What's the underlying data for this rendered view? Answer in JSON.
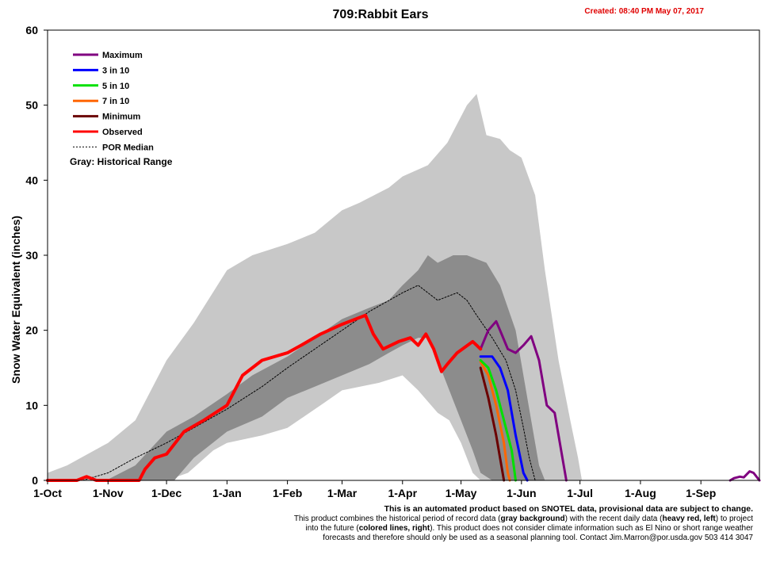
{
  "title": "709:Rabbit Ears",
  "created": "Created: 08:40 PM May 07, 2017",
  "footer": {
    "line1": "This is an automated product based on SNOTEL data, provisional data are subject to change.",
    "line2a": "This product combines the historical period of record data (",
    "line2b": "gray background",
    "line2c": ") with the recent daily data (",
    "line2d": "heavy red, left",
    "line2e": ") to project",
    "line3a": "into the future (",
    "line3b": "colored lines, right",
    "line3c": "). This product does not consider climate information such as El Nino or short range weather",
    "line4": "forecasts and therefore should only be used as a seasonal planning tool. Contact Jim.Marron@por.usda.gov 503 414 3047"
  },
  "chart_data": {
    "type": "line",
    "ylabel": "Snow Water Equivalent (inches)",
    "xlabel": "",
    "ylim": [
      0,
      60
    ],
    "yticks": [
      "0",
      "10",
      "20",
      "30",
      "40",
      "50",
      "60"
    ],
    "xlim": [
      0,
      365
    ],
    "xticks": [
      {
        "label": "1-Oct",
        "day": 0
      },
      {
        "label": "1-Nov",
        "day": 31
      },
      {
        "label": "1-Dec",
        "day": 61
      },
      {
        "label": "1-Jan",
        "day": 92
      },
      {
        "label": "1-Feb",
        "day": 123
      },
      {
        "label": "1-Mar",
        "day": 151
      },
      {
        "label": "1-Apr",
        "day": 182
      },
      {
        "label": "1-May",
        "day": 212
      },
      {
        "label": "1-Jun",
        "day": 243
      },
      {
        "label": "1-Jul",
        "day": 273
      },
      {
        "label": "1-Aug",
        "day": 304
      },
      {
        "label": "1-Sep",
        "day": 335
      }
    ],
    "legend_position": "top-left",
    "legend": [
      {
        "name": "Maximum",
        "color": "#800080",
        "style": "solid"
      },
      {
        "name": "3 in 10",
        "color": "#0000ff",
        "style": "solid"
      },
      {
        "name": "5 in 10",
        "color": "#00e000",
        "style": "solid"
      },
      {
        "name": "7 in 10",
        "color": "#ff6600",
        "style": "solid"
      },
      {
        "name": "Minimum",
        "color": "#6b0000",
        "style": "solid"
      },
      {
        "name": "Observed",
        "color": "#ff0000",
        "style": "solid"
      },
      {
        "name": "POR Median",
        "color": "#000000",
        "style": "dashed"
      }
    ],
    "legend_note": "Gray: Historical Range",
    "colors": {
      "range_outer": "#c8c8c8",
      "range_inner": "#8c8c8c"
    },
    "historical_range_max": [
      [
        0,
        1
      ],
      [
        10,
        2
      ],
      [
        31,
        5
      ],
      [
        45,
        8
      ],
      [
        61,
        16
      ],
      [
        75,
        21
      ],
      [
        92,
        28
      ],
      [
        105,
        30
      ],
      [
        123,
        31.5
      ],
      [
        137,
        33
      ],
      [
        151,
        36
      ],
      [
        160,
        37
      ],
      [
        175,
        39
      ],
      [
        182,
        40.5
      ],
      [
        195,
        42
      ],
      [
        205,
        45
      ],
      [
        215,
        50
      ],
      [
        220,
        51.5
      ],
      [
        225,
        46
      ],
      [
        232,
        45.5
      ],
      [
        237,
        44
      ],
      [
        243,
        43
      ],
      [
        250,
        38
      ],
      [
        255,
        28
      ],
      [
        262,
        16
      ],
      [
        268,
        8
      ],
      [
        272,
        3
      ],
      [
        274,
        0
      ]
    ],
    "historical_range_min": [
      [
        0,
        0
      ],
      [
        40,
        0
      ],
      [
        61,
        0
      ],
      [
        72,
        1
      ],
      [
        85,
        4
      ],
      [
        92,
        5
      ],
      [
        110,
        6
      ],
      [
        123,
        7
      ],
      [
        140,
        10
      ],
      [
        151,
        12
      ],
      [
        170,
        13
      ],
      [
        182,
        14
      ],
      [
        190,
        12
      ],
      [
        200,
        9
      ],
      [
        206,
        8
      ],
      [
        212,
        5
      ],
      [
        218,
        1
      ],
      [
        222,
        0
      ]
    ],
    "inner_band_upper": [
      [
        30,
        0
      ],
      [
        45,
        2
      ],
      [
        61,
        6.5
      ],
      [
        75,
        8.5
      ],
      [
        92,
        11.5
      ],
      [
        105,
        14
      ],
      [
        123,
        16.5
      ],
      [
        137,
        19
      ],
      [
        151,
        21.5
      ],
      [
        165,
        23
      ],
      [
        175,
        24
      ],
      [
        182,
        26
      ],
      [
        190,
        28
      ],
      [
        195,
        30
      ],
      [
        200,
        29
      ],
      [
        208,
        30
      ],
      [
        215,
        30
      ],
      [
        225,
        29
      ],
      [
        232,
        26
      ],
      [
        240,
        20
      ],
      [
        248,
        8
      ],
      [
        252,
        2
      ],
      [
        255,
        0
      ]
    ],
    "inner_band_lower": [
      [
        55,
        0
      ],
      [
        65,
        0
      ],
      [
        75,
        3
      ],
      [
        92,
        6.5
      ],
      [
        110,
        8.5
      ],
      [
        123,
        11
      ],
      [
        137,
        12.5
      ],
      [
        151,
        14
      ],
      [
        165,
        15.5
      ],
      [
        175,
        17
      ],
      [
        182,
        18
      ],
      [
        190,
        19
      ],
      [
        195,
        19
      ],
      [
        200,
        16
      ],
      [
        206,
        12
      ],
      [
        212,
        8
      ],
      [
        218,
        4
      ],
      [
        222,
        1
      ],
      [
        228,
        0
      ]
    ],
    "por_median": [
      [
        18,
        0
      ],
      [
        31,
        1
      ],
      [
        45,
        3
      ],
      [
        61,
        5
      ],
      [
        75,
        7
      ],
      [
        92,
        9.5
      ],
      [
        110,
        12.5
      ],
      [
        123,
        15
      ],
      [
        137,
        17.5
      ],
      [
        151,
        20
      ],
      [
        165,
        22.5
      ],
      [
        182,
        25
      ],
      [
        190,
        26
      ],
      [
        200,
        24
      ],
      [
        210,
        25
      ],
      [
        215,
        24
      ],
      [
        220,
        22
      ],
      [
        228,
        19
      ],
      [
        235,
        16
      ],
      [
        240,
        12
      ],
      [
        244,
        7
      ],
      [
        247,
        3
      ],
      [
        250,
        0
      ]
    ],
    "observed": [
      [
        0,
        0
      ],
      [
        15,
        0
      ],
      [
        20,
        0.5
      ],
      [
        25,
        0
      ],
      [
        47,
        0
      ],
      [
        50,
        1.5
      ],
      [
        55,
        3
      ],
      [
        61,
        3.5
      ],
      [
        70,
        6.5
      ],
      [
        80,
        8
      ],
      [
        92,
        10
      ],
      [
        100,
        14
      ],
      [
        110,
        16
      ],
      [
        123,
        17
      ],
      [
        130,
        18
      ],
      [
        140,
        19.5
      ],
      [
        151,
        20.8
      ],
      [
        158,
        21.5
      ],
      [
        163,
        22
      ],
      [
        167,
        19.5
      ],
      [
        172,
        17.5
      ],
      [
        180,
        18.5
      ],
      [
        186,
        19
      ],
      [
        190,
        18
      ],
      [
        194,
        19.5
      ],
      [
        198,
        17.5
      ],
      [
        202,
        14.5
      ],
      [
        205,
        15.5
      ],
      [
        210,
        17
      ],
      [
        218,
        18.5
      ],
      [
        220,
        18
      ],
      [
        222,
        17.5
      ]
    ],
    "maximum": [
      [
        222,
        17.5
      ],
      [
        226,
        20
      ],
      [
        230,
        21.2
      ],
      [
        232,
        20
      ],
      [
        236,
        17.5
      ],
      [
        240,
        17
      ],
      [
        244,
        18
      ],
      [
        248,
        19.2
      ],
      [
        252,
        16
      ],
      [
        256,
        10
      ],
      [
        260,
        9
      ],
      [
        264,
        3
      ],
      [
        266,
        0
      ]
    ],
    "three_in_10": [
      [
        222,
        16.5
      ],
      [
        228,
        16.5
      ],
      [
        232,
        15
      ],
      [
        236,
        12
      ],
      [
        240,
        6
      ],
      [
        244,
        1
      ],
      [
        246,
        0
      ]
    ],
    "five_in_10": [
      [
        222,
        16
      ],
      [
        226,
        15
      ],
      [
        230,
        12
      ],
      [
        234,
        8
      ],
      [
        238,
        4
      ],
      [
        240,
        0
      ]
    ],
    "seven_in_10": [
      [
        222,
        15.8
      ],
      [
        226,
        14
      ],
      [
        230,
        10
      ],
      [
        234,
        5
      ],
      [
        236,
        1
      ],
      [
        237,
        0
      ]
    ],
    "minimum": [
      [
        222,
        15
      ],
      [
        226,
        11
      ],
      [
        230,
        6
      ],
      [
        232,
        3
      ],
      [
        234,
        0
      ]
    ],
    "maximum_late": [
      [
        350,
        0
      ],
      [
        352,
        0.3
      ],
      [
        355,
        0.5
      ],
      [
        357,
        0.4
      ],
      [
        360,
        1.2
      ],
      [
        362,
        1
      ],
      [
        365,
        0
      ]
    ]
  }
}
